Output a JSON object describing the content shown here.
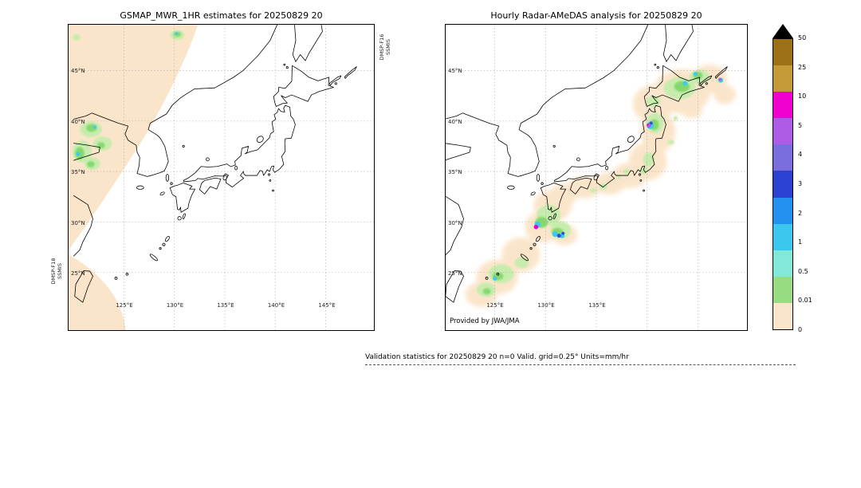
{
  "figure": {
    "left_panel": {
      "title": "GSMAP_MWR_1HR estimates for 20250829 20",
      "satellite_label_bottom_left": [
        "DMSP-F18",
        "SSMIS"
      ],
      "satellite_label_top_right": [
        "DMSP-F16",
        "SSMIS"
      ],
      "lon_ticks": [
        "125°E",
        "130°E",
        "135°E",
        "140°E",
        "145°E"
      ],
      "lat_ticks": [
        "45°N",
        "40°N",
        "35°N",
        "30°N",
        "25°N"
      ]
    },
    "right_panel": {
      "title": "Hourly Radar-AMeDAS analysis for 20250829 20",
      "credit": "Provided by JWA/JMA",
      "lon_ticks": [
        "125°E",
        "130°E",
        "135°E"
      ],
      "lat_ticks": [
        "45°N",
        "40°N",
        "35°N",
        "30°N",
        "25°N"
      ]
    },
    "colorbar": {
      "units": "mm/hr",
      "ticks": [
        "50",
        "25",
        "10",
        "5",
        "4",
        "3",
        "2",
        "1",
        "0.5",
        "0.01",
        "0"
      ],
      "segment_colors_top_to_bottom": [
        "#9b7016",
        "#c49a39",
        "#ef00cf",
        "#ae5be6",
        "#7a6ede",
        "#2b41d0",
        "#2490f0",
        "#3cc8ee",
        "#82e8d8",
        "#98dc82",
        "#fbe5ca"
      ],
      "overflow_triangle_color": "#000000"
    },
    "caption": "Validation statistics for 20250829 20  n=0 Valid. grid=0.25° Units=mm/hr"
  },
  "chart_data": [
    {
      "type": "heatmap",
      "title": "GSMAP_MWR_1HR estimates for 20250829 20",
      "x_ticks": [
        "125°E",
        "130°E",
        "135°E",
        "140°E",
        "145°E"
      ],
      "y_ticks": [
        "45°N",
        "40°N",
        "35°N",
        "30°N",
        "25°N"
      ],
      "colorbar_levels_mm_hr": [
        0,
        0.01,
        0.5,
        1,
        2,
        3,
        4,
        5,
        10,
        25,
        50
      ],
      "legend_position": "shared colorbar at right",
      "features": [
        {
          "region": "large NW satellite swath over Korea/NE China (DMSP swath)",
          "value": "0 mm/hr background (pale peach)"
        },
        {
          "region": "cells near Korea ~35-40N, 120-124E",
          "value": "0.01-2 mm/hr (pale green/green with small cyan cores)"
        },
        {
          "region": "small cell near top edge ~131E, 49N",
          "value": "0.01-2 mm/hr"
        },
        {
          "region": "SW corner swath near Taiwan",
          "value": "0 mm/hr background (pale peach)"
        }
      ]
    },
    {
      "type": "heatmap",
      "title": "Hourly Radar-AMeDAS analysis for 20250829 20",
      "x_ticks": [
        "125°E",
        "130°E",
        "135°E"
      ],
      "y_ticks": [
        "45°N",
        "40°N",
        "35°N",
        "30°N",
        "25°N"
      ],
      "colorbar_levels_mm_hr": [
        0,
        0.01,
        0.5,
        1,
        2,
        3,
        4,
        5,
        10,
        25,
        50
      ],
      "legend_position": "shared colorbar at right",
      "features": [
        {
          "region": "Hokkaido",
          "value": "0.01-3 mm/hr patches with small cyan (1-3) cells"
        },
        {
          "region": "northern Tohoku",
          "value": "small 5-10 mm/hr purple cell inside cyan/green area"
        },
        {
          "region": "Kanto - Chubu - Kinki - Shikoku",
          "value": "trace to 1 mm/hr scattered patches"
        },
        {
          "region": "Kyushu / west of Kyushu ~30N",
          "value": "10-25 mm/hr magenta cell plus 2-5 mm/hr blue cells in green area"
        },
        {
          "region": "Amami / SW islands",
          "value": "0.01-2 mm/hr patches"
        },
        {
          "region": "east of Hokkaido (Kuril side)",
          "value": "small purple/cyan cell"
        }
      ]
    }
  ]
}
